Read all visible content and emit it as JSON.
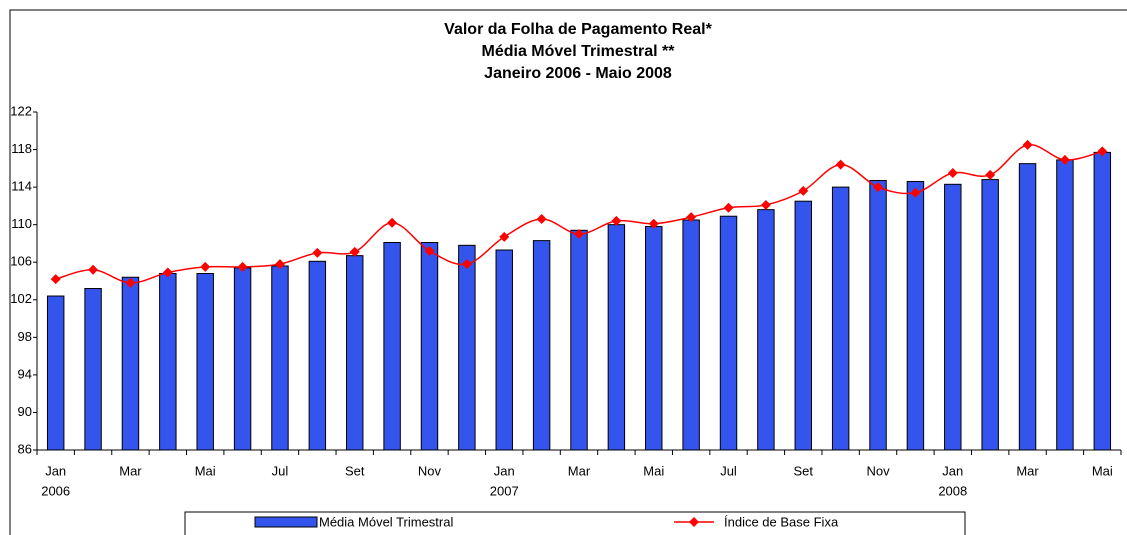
{
  "chart_data": {
    "type": "bar_line",
    "title": [
      "Valor da Folha de Pagamento Real*",
      "Média Móvel Trimestral **",
      "Janeiro 2006 - Maio 2008"
    ],
    "categories": [
      "Jan",
      null,
      "Mar",
      null,
      "Mai",
      null,
      "Jul",
      null,
      "Set",
      null,
      "Nov",
      null,
      "Jan",
      null,
      "Mar",
      null,
      "Mai",
      null,
      "Jul",
      null,
      "Set",
      null,
      "Nov",
      null,
      "Jan",
      null,
      "Mar",
      null,
      "Mai"
    ],
    "category_years": [
      "2006",
      null,
      null,
      null,
      null,
      null,
      null,
      null,
      null,
      null,
      null,
      null,
      "2007",
      null,
      null,
      null,
      null,
      null,
      null,
      null,
      null,
      null,
      null,
      null,
      "2008",
      null,
      null,
      null,
      null
    ],
    "series": [
      {
        "name": "Média Móvel Trimestral",
        "kind": "bar",
        "color": "#3355ee",
        "values": [
          102.4,
          103.2,
          104.4,
          104.8,
          104.8,
          105.4,
          105.6,
          106.1,
          106.7,
          108.1,
          108.1,
          107.8,
          107.3,
          108.3,
          109.4,
          110.0,
          109.8,
          110.5,
          110.9,
          111.6,
          112.5,
          114.0,
          114.7,
          114.6,
          114.3,
          114.8,
          116.5,
          116.9,
          117.7
        ]
      },
      {
        "name": "Índice de Base Fixa",
        "kind": "line",
        "color": "#ff0000",
        "values": [
          104.2,
          105.2,
          103.8,
          104.9,
          105.5,
          105.5,
          105.8,
          107.0,
          107.1,
          110.2,
          107.2,
          105.8,
          108.7,
          110.6,
          109.0,
          110.4,
          110.1,
          110.8,
          111.8,
          112.1,
          113.6,
          116.4,
          114.0,
          113.4,
          115.5,
          115.3,
          118.5,
          116.9,
          117.8
        ]
      }
    ],
    "ylim": [
      86,
      122
    ],
    "yticks": [
      86,
      90,
      94,
      98,
      102,
      106,
      110,
      114,
      118,
      122
    ],
    "legend": "bottom"
  }
}
